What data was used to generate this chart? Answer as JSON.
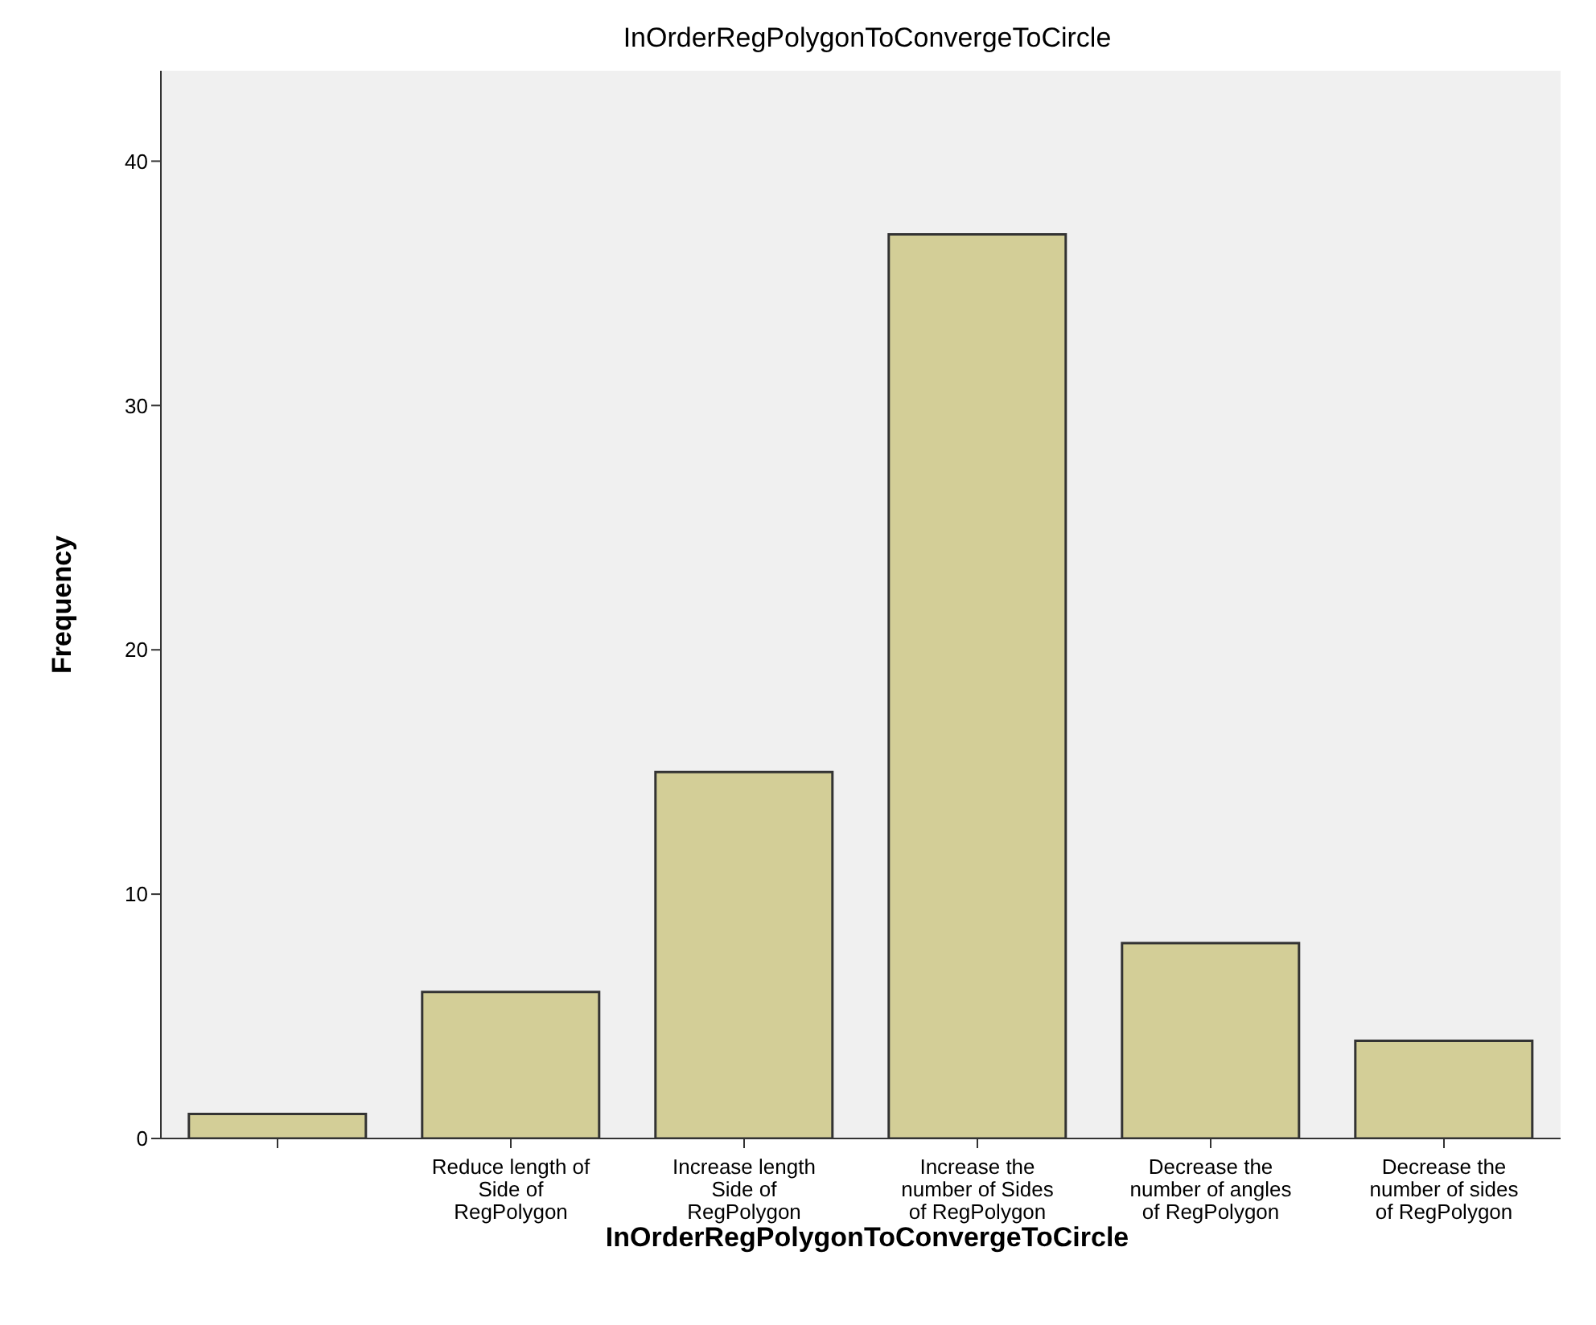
{
  "chart_data": {
    "type": "bar",
    "title": "InOrderRegPolygonToConvergeToCircle",
    "xlabel": "InOrderRegPolygonToConvergeToCircle",
    "ylabel": "Frequency",
    "categories": [
      null,
      "Reduce length of Side of RegPolygon",
      "Increase length Side of RegPolygon",
      "Increase the number of Sides of RegPolygon",
      "Decrease the number of angles of RegPolygon",
      "Decrease the number of sides of RegPolygon"
    ],
    "values": [
      1,
      6,
      15,
      37,
      8,
      4
    ],
    "color": "#d3ce97",
    "ylim": [
      0,
      43.7
    ],
    "yticks": [
      0,
      10,
      20,
      30,
      40
    ],
    "grid": false,
    "legend": false
  }
}
